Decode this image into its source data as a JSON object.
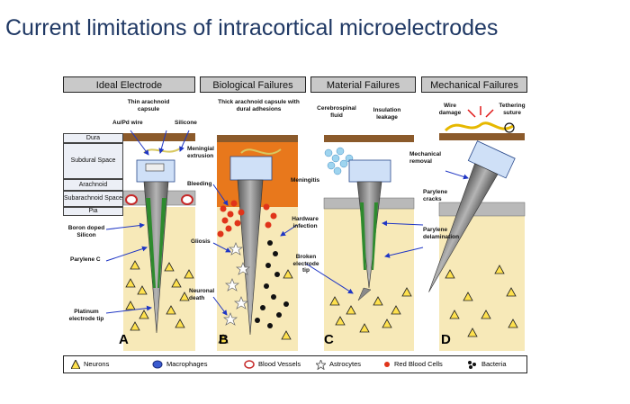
{
  "slide": {
    "title": "Current limitations of intracortical microelectrodes"
  },
  "panels": [
    {
      "header": "Ideal Electrode",
      "letter": "A"
    },
    {
      "header": "Biological Failures",
      "letter": "B"
    },
    {
      "header": "Material Failures",
      "letter": "C"
    },
    {
      "header": "Mechanical Failures",
      "letter": "D"
    }
  ],
  "layers": [
    "Dura",
    "Subdural Space",
    "Arachnoid",
    "Subarachnoid Space",
    "Pia"
  ],
  "annotations": {
    "a_thin_arachnoid": "Thin arachnoid capsule",
    "a_au_pd": "Au/Pd wire",
    "a_silicone": "Silicone",
    "a_boron": "Boron doped Silicon",
    "a_parylene": "Parylene C",
    "a_platinum": "Platinum electrode tip",
    "b_thick_arachnoid": "Thick arachnoid capsule with dural adhesions",
    "b_meningial": "Meningial extrusion",
    "b_bleeding": "Bleeding",
    "b_meningitis": "Meningitis",
    "b_gliosis": "Gliosis",
    "b_hardware": "Hardware infection",
    "b_neuronal": "Neuronal death",
    "c_csf": "Cerebrospinal fluid",
    "c_insulation": "Insulation leakage",
    "c_parylene_cracks": "Parylene cracks",
    "c_broken_tip": "Broken electrode tip",
    "c_parylene_delam": "Parylene delamination",
    "d_wire_damage": "Wire damage",
    "d_tethering": "Tethering suture",
    "d_mechanical_removal": "Mechanical removal"
  },
  "legend": [
    {
      "label": "Neurons",
      "icon": "triangle-icon"
    },
    {
      "label": "Macrophages",
      "icon": "macrophage-icon"
    },
    {
      "label": "Blood Vessels",
      "icon": "blood-vessel-icon"
    },
    {
      "label": "Astrocytes",
      "icon": "astrocyte-star-icon"
    },
    {
      "label": "Red Blood Cells",
      "icon": "red-dot-icon"
    },
    {
      "label": "Bacteria",
      "icon": "bacteria-icon"
    }
  ],
  "colors": {
    "title": "#1f3864",
    "tissue": "#f7e9b8",
    "dura": "#8b5a2b",
    "shank": "#8a8a8a",
    "parylene": "#2e8b2e",
    "blood": "#e0341a",
    "orange": "#e8781c",
    "arrow": "#1f36c4"
  }
}
